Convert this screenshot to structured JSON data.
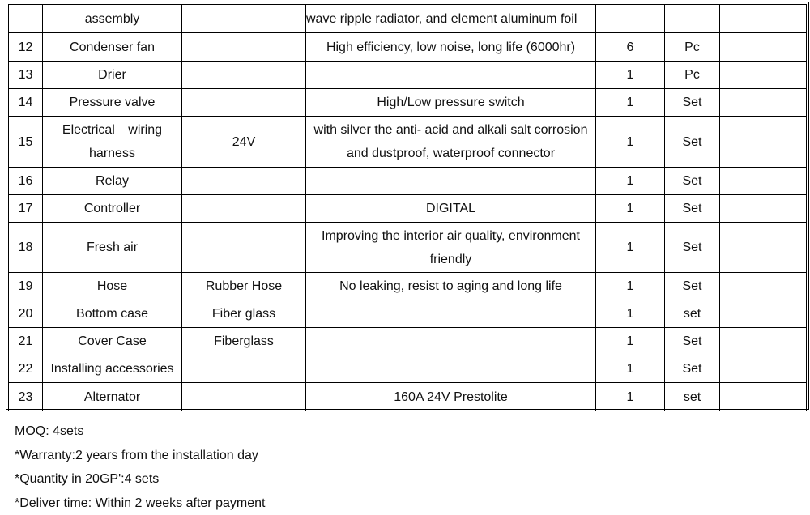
{
  "rows": [
    {
      "no": "",
      "name": "assembly",
      "spec": "",
      "desc": "wave ripple radiator, and element aluminum foil",
      "qty": "",
      "unit": "",
      "remark": ""
    },
    {
      "no": "12",
      "name": "Condenser fan",
      "spec": "",
      "desc": "High efficiency, low noise, long life (6000hr)",
      "qty": "6",
      "unit": "Pc",
      "remark": ""
    },
    {
      "no": "13",
      "name": "Drier",
      "spec": "",
      "desc": "",
      "qty": "1",
      "unit": "Pc",
      "remark": ""
    },
    {
      "no": "14",
      "name": "Pressure valve",
      "spec": "",
      "desc": "High/Low pressure switch",
      "qty": "1",
      "unit": "Set",
      "remark": ""
    },
    {
      "no": "15",
      "name": "Electrical wiring harness",
      "spec": "24V",
      "desc": "with silver the anti- acid and alkali salt corrosion and dustproof, waterproof connector",
      "qty": "1",
      "unit": "Set",
      "remark": ""
    },
    {
      "no": "16",
      "name": "Relay",
      "spec": "",
      "desc": "",
      "qty": "1",
      "unit": "Set",
      "remark": ""
    },
    {
      "no": "17",
      "name": "Controller",
      "spec": "",
      "desc": "DIGITAL",
      "qty": "1",
      "unit": "Set",
      "remark": ""
    },
    {
      "no": "18",
      "name": "Fresh air",
      "spec": "",
      "desc": "Improving the interior air quality, environment friendly",
      "qty": "1",
      "unit": "Set",
      "remark": ""
    },
    {
      "no": "19",
      "name": "Hose",
      "spec": "Rubber Hose",
      "desc": "No leaking, resist to aging and long life",
      "qty": "1",
      "unit": "Set",
      "remark": ""
    },
    {
      "no": "20",
      "name": "Bottom case",
      "spec": "Fiber glass",
      "desc": "",
      "qty": "1",
      "unit": "set",
      "remark": ""
    },
    {
      "no": "21",
      "name": "Cover Case",
      "spec": "Fiberglass",
      "desc": "",
      "qty": "1",
      "unit": "Set",
      "remark": ""
    },
    {
      "no": "22",
      "name": "Installing accessories",
      "spec": "",
      "desc": "",
      "qty": "1",
      "unit": "Set",
      "remark": ""
    },
    {
      "no": "23",
      "name": "Alternator",
      "spec": "",
      "desc": "160A 24V Prestolite",
      "qty": "1",
      "unit": "set",
      "remark": ""
    }
  ],
  "notes": [
    "MOQ: 4sets",
    "*Warranty:2 years from the installation day",
    "*Quantity in 20GP':4 sets",
    "*Deliver time: Within 2 weeks after payment"
  ]
}
